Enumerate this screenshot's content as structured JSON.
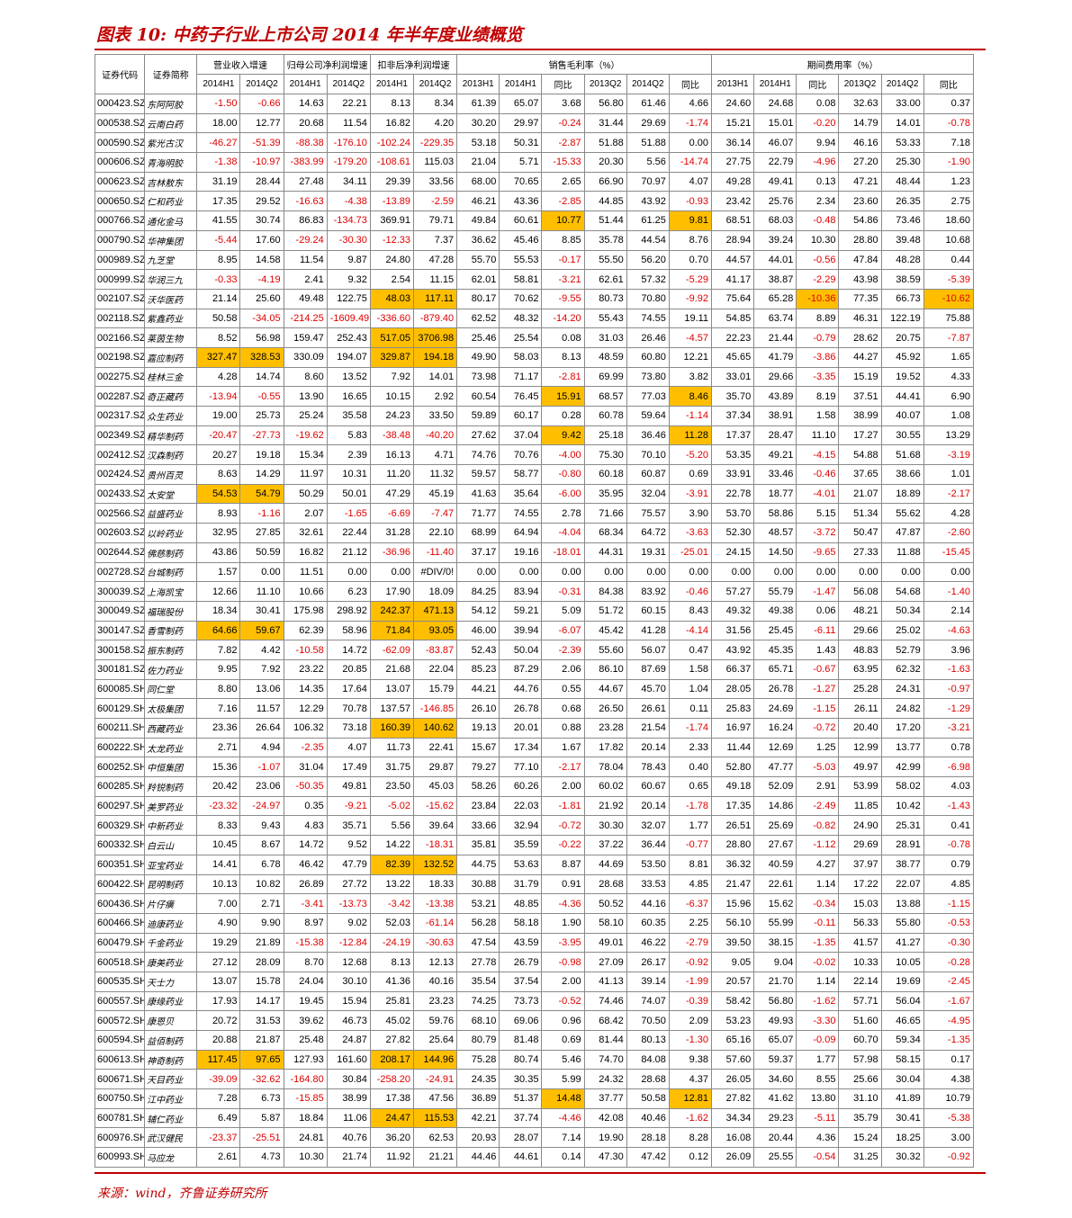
{
  "title": "图表 10:  中药子行业上市公司 2014 年半年度业绩概览",
  "source": "来源：wind，齐鲁证券研究所",
  "header": {
    "code": "证券代码",
    "name": "证券简称",
    "groups": [
      "营业收入增速",
      "归母公司净利润增速",
      "扣非后净利润增速",
      "销售毛利率（%）",
      "期间费用率（%）"
    ],
    "sub": [
      "2014H1",
      "2014Q2",
      "2014H1",
      "2014Q2",
      "2014H1",
      "2014Q2",
      "2013H1",
      "2014H1",
      "同比",
      "2013Q2",
      "2014Q2",
      "同比",
      "2013H1",
      "2014H1",
      "同比",
      "2013Q2",
      "2014Q2",
      "同比"
    ]
  },
  "colors": {
    "accent": "#c00000",
    "negative": "#e00000",
    "highlight": "#ffbf00"
  },
  "rows": [
    [
      "000423.SZ",
      "东阿阿胶",
      "-1.50",
      "-0.66",
      "14.63",
      "22.21",
      "8.13",
      "8.34",
      "61.39",
      "65.07",
      "3.68",
      "56.80",
      "61.46",
      "4.66",
      "24.60",
      "24.68",
      "0.08",
      "32.63",
      "33.00",
      "0.37"
    ],
    [
      "000538.SZ",
      "云南白药",
      "18.00",
      "12.77",
      "20.68",
      "11.54",
      "16.82",
      "4.20",
      "30.20",
      "29.97",
      "-0.24",
      "31.44",
      "29.69",
      "-1.74",
      "15.21",
      "15.01",
      "-0.20",
      "14.79",
      "14.01",
      "-0.78"
    ],
    [
      "000590.SZ",
      "紫光古汉",
      "-46.27",
      "-51.39",
      "-88.38",
      "-176.10",
      "-102.24",
      "-229.35",
      "53.18",
      "50.31",
      "-2.87",
      "51.88",
      "51.88",
      "0.00",
      "36.14",
      "46.07",
      "9.94",
      "46.16",
      "53.33",
      "7.18"
    ],
    [
      "000606.SZ",
      "青海明胶",
      "-1.38",
      "-10.97",
      "-383.99",
      "-179.20",
      "-108.61",
      "115.03",
      "21.04",
      "5.71",
      "-15.33",
      "20.30",
      "5.56",
      "-14.74",
      "27.75",
      "22.79",
      "-4.96",
      "27.20",
      "25.30",
      "-1.90"
    ],
    [
      "000623.SZ",
      "吉林敖东",
      "31.19",
      "28.44",
      "27.48",
      "34.11",
      "29.39",
      "33.56",
      "68.00",
      "70.65",
      "2.65",
      "66.90",
      "70.97",
      "4.07",
      "49.28",
      "49.41",
      "0.13",
      "47.21",
      "48.44",
      "1.23"
    ],
    [
      "000650.SZ",
      "仁和药业",
      "17.35",
      "29.52",
      "-16.63",
      "-4.38",
      "-13.89",
      "-2.59",
      "46.21",
      "43.36",
      "-2.85",
      "44.85",
      "43.92",
      "-0.93",
      "23.42",
      "25.76",
      "2.34",
      "23.60",
      "26.35",
      "2.75"
    ],
    [
      "000766.SZ",
      "通化金马",
      "41.55",
      "30.74",
      "86.83",
      "-134.73",
      "369.91",
      "79.71",
      "49.84",
      "60.61",
      "10.77",
      "51.44",
      "61.25",
      "9.81",
      "68.51",
      "68.03",
      "-0.48",
      "54.86",
      "73.46",
      "18.60"
    ],
    [
      "000790.SZ",
      "华神集团",
      "-5.44",
      "17.60",
      "-29.24",
      "-30.30",
      "-12.33",
      "7.37",
      "36.62",
      "45.46",
      "8.85",
      "35.78",
      "44.54",
      "8.76",
      "28.94",
      "39.24",
      "10.30",
      "28.80",
      "39.48",
      "10.68"
    ],
    [
      "000989.SZ",
      "九芝堂",
      "8.95",
      "14.58",
      "11.54",
      "9.87",
      "24.80",
      "47.28",
      "55.70",
      "55.53",
      "-0.17",
      "55.50",
      "56.20",
      "0.70",
      "44.57",
      "44.01",
      "-0.56",
      "47.84",
      "48.28",
      "0.44"
    ],
    [
      "000999.SZ",
      "华润三九",
      "-0.33",
      "-4.19",
      "2.41",
      "9.32",
      "2.54",
      "11.15",
      "62.01",
      "58.81",
      "-3.21",
      "62.61",
      "57.32",
      "-5.29",
      "41.17",
      "38.87",
      "-2.29",
      "43.98",
      "38.59",
      "-5.39"
    ],
    [
      "002107.SZ",
      "沃华医药",
      "21.14",
      "25.60",
      "49.48",
      "122.75",
      "48.03",
      "117.11",
      "80.17",
      "70.62",
      "-9.55",
      "80.73",
      "70.80",
      "-9.92",
      "75.64",
      "65.28",
      "-10.36",
      "77.35",
      "66.73",
      "-10.62"
    ],
    [
      "002118.SZ",
      "紫鑫药业",
      "50.58",
      "-34.05",
      "-214.25",
      "-1609.49",
      "-336.60",
      "-879.40",
      "62.52",
      "48.32",
      "-14.20",
      "55.43",
      "74.55",
      "19.11",
      "54.85",
      "63.74",
      "8.89",
      "46.31",
      "122.19",
      "75.88"
    ],
    [
      "002166.SZ",
      "莱茵生物",
      "8.52",
      "56.98",
      "159.47",
      "252.43",
      "517.05",
      "3706.98",
      "25.46",
      "25.54",
      "0.08",
      "31.03",
      "26.46",
      "-4.57",
      "22.23",
      "21.44",
      "-0.79",
      "28.62",
      "20.75",
      "-7.87"
    ],
    [
      "002198.SZ",
      "嘉应制药",
      "327.47",
      "328.53",
      "330.09",
      "194.07",
      "329.87",
      "194.18",
      "49.90",
      "58.03",
      "8.13",
      "48.59",
      "60.80",
      "12.21",
      "45.65",
      "41.79",
      "-3.86",
      "44.27",
      "45.92",
      "1.65"
    ],
    [
      "002275.SZ",
      "桂林三金",
      "4.28",
      "14.74",
      "8.60",
      "13.52",
      "7.92",
      "14.01",
      "73.98",
      "71.17",
      "-2.81",
      "69.99",
      "73.80",
      "3.82",
      "33.01",
      "29.66",
      "-3.35",
      "15.19",
      "19.52",
      "4.33"
    ],
    [
      "002287.SZ",
      "奇正藏药",
      "-13.94",
      "-0.55",
      "13.90",
      "16.65",
      "10.15",
      "2.92",
      "60.54",
      "76.45",
      "15.91",
      "68.57",
      "77.03",
      "8.46",
      "35.70",
      "43.89",
      "8.19",
      "37.51",
      "44.41",
      "6.90"
    ],
    [
      "002317.SZ",
      "众生药业",
      "19.00",
      "25.73",
      "25.24",
      "35.58",
      "24.23",
      "33.50",
      "59.89",
      "60.17",
      "0.28",
      "60.78",
      "59.64",
      "-1.14",
      "37.34",
      "38.91",
      "1.58",
      "38.99",
      "40.07",
      "1.08"
    ],
    [
      "002349.SZ",
      "精华制药",
      "-20.47",
      "-27.73",
      "-19.62",
      "5.83",
      "-38.48",
      "-40.20",
      "27.62",
      "37.04",
      "9.42",
      "25.18",
      "36.46",
      "11.28",
      "17.37",
      "28.47",
      "11.10",
      "17.27",
      "30.55",
      "13.29"
    ],
    [
      "002412.SZ",
      "汉森制药",
      "20.27",
      "19.18",
      "15.34",
      "2.39",
      "16.13",
      "4.71",
      "74.76",
      "70.76",
      "-4.00",
      "75.30",
      "70.10",
      "-5.20",
      "53.35",
      "49.21",
      "-4.15",
      "54.88",
      "51.68",
      "-3.19"
    ],
    [
      "002424.SZ",
      "贵州百灵",
      "8.63",
      "14.29",
      "11.97",
      "10.31",
      "11.20",
      "11.32",
      "59.57",
      "58.77",
      "-0.80",
      "60.18",
      "60.87",
      "0.69",
      "33.91",
      "33.46",
      "-0.46",
      "37.65",
      "38.66",
      "1.01"
    ],
    [
      "002433.SZ",
      "太安堂",
      "54.53",
      "54.79",
      "50.29",
      "50.01",
      "47.29",
      "45.19",
      "41.63",
      "35.64",
      "-6.00",
      "35.95",
      "32.04",
      "-3.91",
      "22.78",
      "18.77",
      "-4.01",
      "21.07",
      "18.89",
      "-2.17"
    ],
    [
      "002566.SZ",
      "益盛药业",
      "8.93",
      "-1.16",
      "2.07",
      "-1.65",
      "-6.69",
      "-7.47",
      "71.77",
      "74.55",
      "2.78",
      "71.66",
      "75.57",
      "3.90",
      "53.70",
      "58.86",
      "5.15",
      "51.34",
      "55.62",
      "4.28"
    ],
    [
      "002603.SZ",
      "以岭药业",
      "32.95",
      "27.85",
      "32.61",
      "22.44",
      "31.28",
      "22.10",
      "68.99",
      "64.94",
      "-4.04",
      "68.34",
      "64.72",
      "-3.63",
      "52.30",
      "48.57",
      "-3.72",
      "50.47",
      "47.87",
      "-2.60"
    ],
    [
      "002644.SZ",
      "佛慈制药",
      "43.86",
      "50.59",
      "16.82",
      "21.12",
      "-36.96",
      "-11.40",
      "37.17",
      "19.16",
      "-18.01",
      "44.31",
      "19.31",
      "-25.01",
      "24.15",
      "14.50",
      "-9.65",
      "27.33",
      "11.88",
      "-15.45"
    ],
    [
      "002728.SZ",
      "台城制药",
      "1.57",
      "0.00",
      "11.51",
      "0.00",
      "0.00",
      "#DIV/0!",
      "0.00",
      "0.00",
      "0.00",
      "0.00",
      "0.00",
      "0.00",
      "0.00",
      "0.00",
      "0.00",
      "0.00",
      "0.00",
      "0.00"
    ],
    [
      "300039.SZ",
      "上海凯宝",
      "12.66",
      "11.10",
      "10.66",
      "6.23",
      "17.90",
      "18.09",
      "84.25",
      "83.94",
      "-0.31",
      "84.38",
      "83.92",
      "-0.46",
      "57.27",
      "55.79",
      "-1.47",
      "56.08",
      "54.68",
      "-1.40"
    ],
    [
      "300049.SZ",
      "福瑞股份",
      "18.34",
      "30.41",
      "175.98",
      "298.92",
      "242.37",
      "471.13",
      "54.12",
      "59.21",
      "5.09",
      "51.72",
      "60.15",
      "8.43",
      "49.32",
      "49.38",
      "0.06",
      "48.21",
      "50.34",
      "2.14"
    ],
    [
      "300147.SZ",
      "香雪制药",
      "64.66",
      "59.67",
      "62.39",
      "58.96",
      "71.84",
      "93.05",
      "46.00",
      "39.94",
      "-6.07",
      "45.42",
      "41.28",
      "-4.14",
      "31.56",
      "25.45",
      "-6.11",
      "29.66",
      "25.02",
      "-4.63"
    ],
    [
      "300158.SZ",
      "振东制药",
      "7.82",
      "4.42",
      "-10.58",
      "14.72",
      "-62.09",
      "-83.87",
      "52.43",
      "50.04",
      "-2.39",
      "55.60",
      "56.07",
      "0.47",
      "43.92",
      "45.35",
      "1.43",
      "48.83",
      "52.79",
      "3.96"
    ],
    [
      "300181.SZ",
      "佐力药业",
      "9.95",
      "7.92",
      "23.22",
      "20.85",
      "21.68",
      "22.04",
      "85.23",
      "87.29",
      "2.06",
      "86.10",
      "87.69",
      "1.58",
      "66.37",
      "65.71",
      "-0.67",
      "63.95",
      "62.32",
      "-1.63"
    ],
    [
      "600085.SH",
      "同仁堂",
      "8.80",
      "13.06",
      "14.35",
      "17.64",
      "13.07",
      "15.79",
      "44.21",
      "44.76",
      "0.55",
      "44.67",
      "45.70",
      "1.04",
      "28.05",
      "26.78",
      "-1.27",
      "25.28",
      "24.31",
      "-0.97"
    ],
    [
      "600129.SH",
      "太极集团",
      "7.16",
      "11.57",
      "12.29",
      "70.78",
      "137.57",
      "-146.85",
      "26.10",
      "26.78",
      "0.68",
      "26.50",
      "26.61",
      "0.11",
      "25.83",
      "24.69",
      "-1.15",
      "26.11",
      "24.82",
      "-1.29"
    ],
    [
      "600211.SH",
      "西藏药业",
      "23.36",
      "26.64",
      "106.32",
      "73.18",
      "160.39",
      "140.62",
      "19.13",
      "20.01",
      "0.88",
      "23.28",
      "21.54",
      "-1.74",
      "16.97",
      "16.24",
      "-0.72",
      "20.40",
      "17.20",
      "-3.21"
    ],
    [
      "600222.SH",
      "太龙药业",
      "2.71",
      "4.94",
      "-2.35",
      "4.07",
      "11.73",
      "22.41",
      "15.67",
      "17.34",
      "1.67",
      "17.82",
      "20.14",
      "2.33",
      "11.44",
      "12.69",
      "1.25",
      "12.99",
      "13.77",
      "0.78"
    ],
    [
      "600252.SH",
      "中恒集团",
      "15.36",
      "-1.07",
      "31.04",
      "17.49",
      "31.75",
      "29.87",
      "79.27",
      "77.10",
      "-2.17",
      "78.04",
      "78.43",
      "0.40",
      "52.80",
      "47.77",
      "-5.03",
      "49.97",
      "42.99",
      "-6.98"
    ],
    [
      "600285.SH",
      "羚锐制药",
      "20.42",
      "23.06",
      "-50.35",
      "49.81",
      "23.50",
      "45.03",
      "58.26",
      "60.26",
      "2.00",
      "60.02",
      "60.67",
      "0.65",
      "49.18",
      "52.09",
      "2.91",
      "53.99",
      "58.02",
      "4.03"
    ],
    [
      "600297.SH",
      "美罗药业",
      "-23.32",
      "-24.97",
      "0.35",
      "-9.21",
      "-5.02",
      "-15.62",
      "23.84",
      "22.03",
      "-1.81",
      "21.92",
      "20.14",
      "-1.78",
      "17.35",
      "14.86",
      "-2.49",
      "11.85",
      "10.42",
      "-1.43"
    ],
    [
      "600329.SH",
      "中新药业",
      "8.33",
      "9.43",
      "4.83",
      "35.71",
      "5.56",
      "39.64",
      "33.66",
      "32.94",
      "-0.72",
      "30.30",
      "32.07",
      "1.77",
      "26.51",
      "25.69",
      "-0.82",
      "24.90",
      "25.31",
      "0.41"
    ],
    [
      "600332.SH",
      "白云山",
      "10.45",
      "8.67",
      "14.72",
      "9.52",
      "14.22",
      "-18.31",
      "35.81",
      "35.59",
      "-0.22",
      "37.22",
      "36.44",
      "-0.77",
      "28.80",
      "27.67",
      "-1.12",
      "29.69",
      "28.91",
      "-0.78"
    ],
    [
      "600351.SH",
      "亚宝药业",
      "14.41",
      "6.78",
      "46.42",
      "47.79",
      "82.39",
      "132.52",
      "44.75",
      "53.63",
      "8.87",
      "44.69",
      "53.50",
      "8.81",
      "36.32",
      "40.59",
      "4.27",
      "37.97",
      "38.77",
      "0.79"
    ],
    [
      "600422.SH",
      "昆明制药",
      "10.13",
      "10.82",
      "26.89",
      "27.72",
      "13.22",
      "18.33",
      "30.88",
      "31.79",
      "0.91",
      "28.68",
      "33.53",
      "4.85",
      "21.47",
      "22.61",
      "1.14",
      "17.22",
      "22.07",
      "4.85"
    ],
    [
      "600436.SH",
      "片仔癀",
      "7.00",
      "2.71",
      "-3.41",
      "-13.73",
      "-3.42",
      "-13.38",
      "53.21",
      "48.85",
      "-4.36",
      "50.52",
      "44.16",
      "-6.37",
      "15.96",
      "15.62",
      "-0.34",
      "15.03",
      "13.88",
      "-1.15"
    ],
    [
      "600466.SH",
      "迪康药业",
      "4.90",
      "9.90",
      "8.97",
      "9.02",
      "52.03",
      "-61.14",
      "56.28",
      "58.18",
      "1.90",
      "58.10",
      "60.35",
      "2.25",
      "56.10",
      "55.99",
      "-0.11",
      "56.33",
      "55.80",
      "-0.53"
    ],
    [
      "600479.SH",
      "千金药业",
      "19.29",
      "21.89",
      "-15.38",
      "-12.84",
      "-24.19",
      "-30.63",
      "47.54",
      "43.59",
      "-3.95",
      "49.01",
      "46.22",
      "-2.79",
      "39.50",
      "38.15",
      "-1.35",
      "41.57",
      "41.27",
      "-0.30"
    ],
    [
      "600518.SH",
      "康美药业",
      "27.12",
      "28.09",
      "8.70",
      "12.68",
      "8.13",
      "12.13",
      "27.78",
      "26.79",
      "-0.98",
      "27.09",
      "26.17",
      "-0.92",
      "9.05",
      "9.04",
      "-0.02",
      "10.33",
      "10.05",
      "-0.28"
    ],
    [
      "600535.SH",
      "天士力",
      "13.07",
      "15.78",
      "24.04",
      "30.10",
      "41.36",
      "40.16",
      "35.54",
      "37.54",
      "2.00",
      "41.13",
      "39.14",
      "-1.99",
      "20.57",
      "21.70",
      "1.14",
      "22.14",
      "19.69",
      "-2.45"
    ],
    [
      "600557.SH",
      "康缘药业",
      "17.93",
      "14.17",
      "19.45",
      "15.94",
      "25.81",
      "23.23",
      "74.25",
      "73.73",
      "-0.52",
      "74.46",
      "74.07",
      "-0.39",
      "58.42",
      "56.80",
      "-1.62",
      "57.71",
      "56.04",
      "-1.67"
    ],
    [
      "600572.SH",
      "康恩贝",
      "20.72",
      "31.53",
      "39.62",
      "46.73",
      "45.02",
      "59.76",
      "68.10",
      "69.06",
      "0.96",
      "68.42",
      "70.50",
      "2.09",
      "53.23",
      "49.93",
      "-3.30",
      "51.60",
      "46.65",
      "-4.95"
    ],
    [
      "600594.SH",
      "益佰制药",
      "20.88",
      "21.87",
      "25.48",
      "24.87",
      "27.82",
      "25.64",
      "80.79",
      "81.48",
      "0.69",
      "81.44",
      "80.13",
      "-1.30",
      "65.16",
      "65.07",
      "-0.09",
      "60.70",
      "59.34",
      "-1.35"
    ],
    [
      "600613.SH",
      "神奇制药",
      "117.45",
      "97.65",
      "127.93",
      "161.60",
      "208.17",
      "144.96",
      "75.28",
      "80.74",
      "5.46",
      "74.70",
      "84.08",
      "9.38",
      "57.60",
      "59.37",
      "1.77",
      "57.98",
      "58.15",
      "0.17"
    ],
    [
      "600671.SH",
      "天目药业",
      "-39.09",
      "-32.62",
      "-164.80",
      "30.84",
      "-258.20",
      "-24.91",
      "24.35",
      "30.35",
      "5.99",
      "24.32",
      "28.68",
      "4.37",
      "26.05",
      "34.60",
      "8.55",
      "25.66",
      "30.04",
      "4.38"
    ],
    [
      "600750.SH",
      "江中药业",
      "7.28",
      "6.73",
      "-15.85",
      "38.99",
      "17.38",
      "47.56",
      "36.89",
      "51.37",
      "14.48",
      "37.77",
      "50.58",
      "12.81",
      "27.82",
      "41.62",
      "13.80",
      "31.10",
      "41.89",
      "10.79"
    ],
    [
      "600781.SH",
      "辅仁药业",
      "6.49",
      "5.87",
      "18.84",
      "11.06",
      "24.47",
      "115.53",
      "42.21",
      "37.74",
      "-4.46",
      "42.08",
      "40.46",
      "-1.62",
      "34.34",
      "29.23",
      "-5.11",
      "35.79",
      "30.41",
      "-5.38"
    ],
    [
      "600976.SH",
      "武汉健民",
      "-23.37",
      "-25.51",
      "24.81",
      "40.76",
      "36.20",
      "62.53",
      "20.93",
      "28.07",
      "7.14",
      "19.90",
      "28.18",
      "8.28",
      "16.08",
      "20.44",
      "4.36",
      "15.24",
      "18.25",
      "3.00"
    ],
    [
      "600993.SH",
      "马应龙",
      "2.61",
      "4.73",
      "10.30",
      "21.74",
      "11.92",
      "21.21",
      "44.46",
      "44.61",
      "0.14",
      "47.30",
      "47.42",
      "0.12",
      "26.09",
      "25.55",
      "-0.54",
      "31.25",
      "30.32",
      "-0.92"
    ]
  ],
  "highlights": {
    "000766.SZ": [
      10,
      13
    ],
    "002107.SZ": [
      6,
      7,
      16,
      19
    ],
    "002166.SZ": [
      6,
      7
    ],
    "002198.SZ": [
      2,
      3,
      6,
      7
    ],
    "002287.SZ": [
      10,
      13
    ],
    "002349.SZ": [
      10,
      13
    ],
    "002433.SZ": [
      2,
      3
    ],
    "300049.SZ": [
      6,
      7
    ],
    "300147.SZ": [
      2,
      3,
      6,
      7
    ],
    "600211.SH": [
      6,
      7
    ],
    "600351.SH": [
      6,
      7
    ],
    "600613.SH": [
      2,
      3,
      6,
      7
    ],
    "600750.SH": [
      10,
      13
    ],
    "600781.SH": [
      6,
      7
    ]
  }
}
